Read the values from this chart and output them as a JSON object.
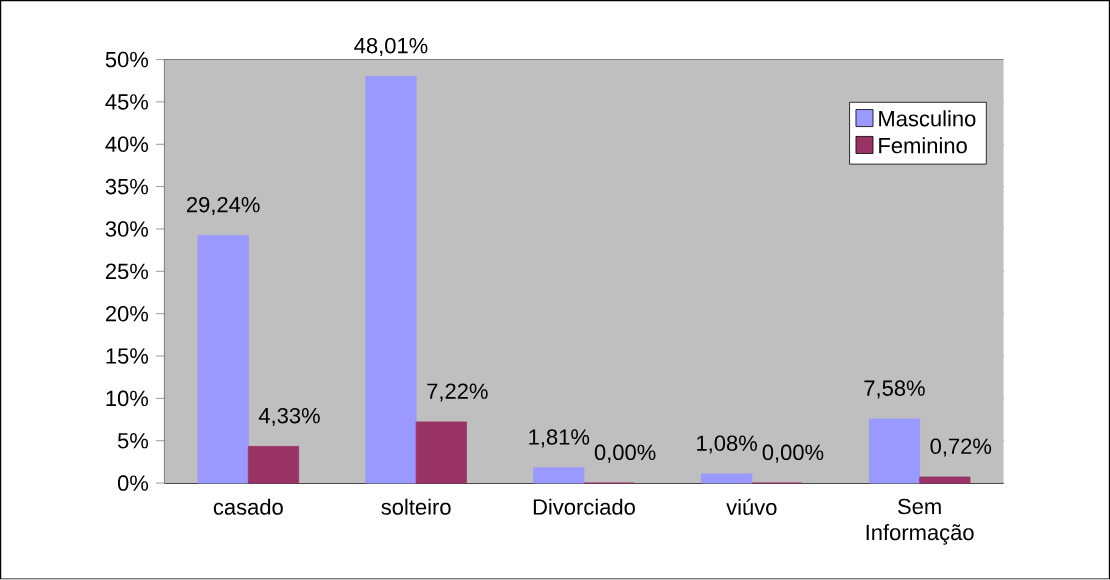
{
  "chart_data": {
    "type": "bar",
    "categories": [
      "casado",
      "solteiro",
      "Divorciado",
      "viúvo",
      "Sem Informação"
    ],
    "series": [
      {
        "name": "Masculino",
        "color": "#9999ff",
        "values": [
          29.24,
          48.01,
          1.81,
          1.08,
          7.58
        ],
        "value_labels": [
          "29,24%",
          "48,01%",
          "1,81%",
          "1,08%",
          "7,58%"
        ]
      },
      {
        "name": "Feminino",
        "color": "#993366",
        "values": [
          4.33,
          7.22,
          0,
          0,
          0.72
        ],
        "value_labels": [
          "4,33%",
          "7,22%",
          "0,00%",
          "0,00%",
          "0,72%"
        ]
      }
    ],
    "ylim": [
      0,
      50
    ],
    "yticks": [
      {
        "value": 0,
        "label": "0%"
      },
      {
        "value": 5,
        "label": "5%"
      },
      {
        "value": 10,
        "label": "10%"
      },
      {
        "value": 15,
        "label": "15%"
      },
      {
        "value": 20,
        "label": "20%"
      },
      {
        "value": 25,
        "label": "25%"
      },
      {
        "value": 30,
        "label": "30%"
      },
      {
        "value": 35,
        "label": "35%"
      },
      {
        "value": 40,
        "label": "40%"
      },
      {
        "value": 45,
        "label": "45%"
      },
      {
        "value": 50,
        "label": "50%"
      }
    ],
    "grid": "y",
    "legend": "top right"
  }
}
